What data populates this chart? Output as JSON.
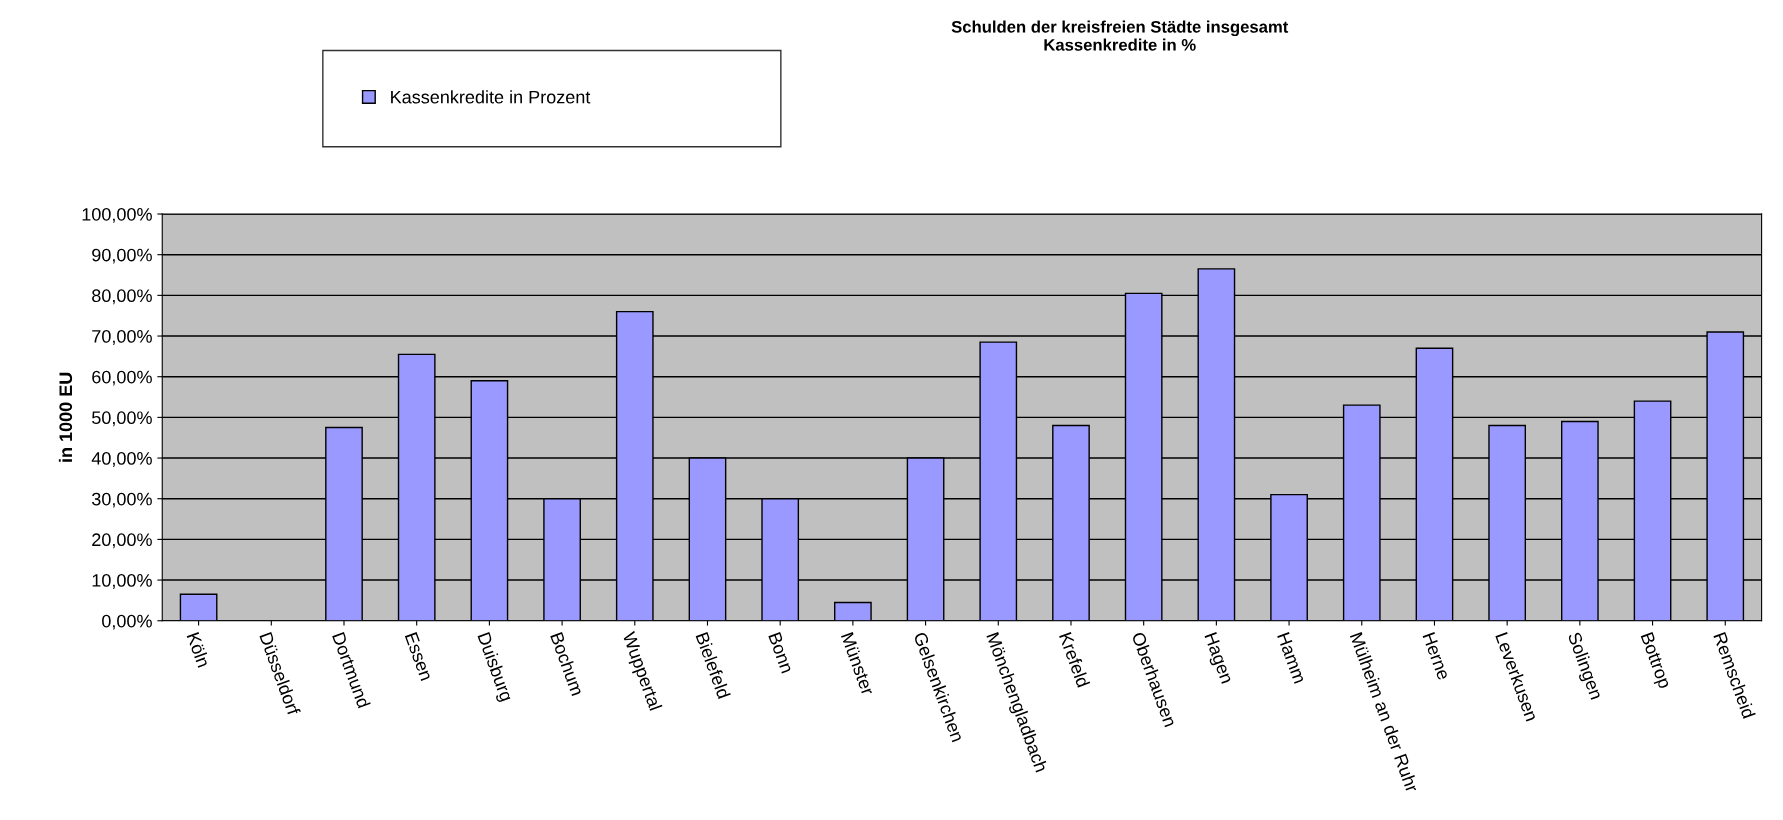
{
  "chart_data": {
    "type": "bar",
    "title": "Schulden der kreisfreien Städte insgesamt\nKassenkredite in %",
    "ylabel": "in 1000 EU",
    "categories": [
      "Köln",
      "Düsseldorf",
      "Dortmund",
      "Essen",
      "Duisburg",
      "Bochum",
      "Wuppertal",
      "Bielefeld",
      "Bonn",
      "Münster",
      "Gelsenkirchen",
      "Mönchengladbach",
      "Krefeld",
      "Oberhausen",
      "Hagen",
      "Hamm",
      "Mülheim an der Ruhr",
      "Herne",
      "Leverkusen",
      "Solingen",
      "Bottrop",
      "Remscheid"
    ],
    "series": [
      {
        "name": "Kassenkredite in Prozent",
        "color": "#9999ff",
        "values": [
          6.5,
          null,
          47.5,
          65.5,
          59,
          30,
          76,
          40,
          30,
          4.5,
          40,
          68.5,
          48,
          80.5,
          86.5,
          31,
          53,
          67,
          48,
          49,
          54,
          71
        ]
      }
    ],
    "ylim": [
      0,
      100
    ],
    "yticks": [
      {
        "value": 0,
        "label": "0,00%"
      },
      {
        "value": 10,
        "label": "10,00%"
      },
      {
        "value": 20,
        "label": "20,00%"
      },
      {
        "value": 30,
        "label": "30,00%"
      },
      {
        "value": 40,
        "label": "40,00%"
      },
      {
        "value": 50,
        "label": "50,00%"
      },
      {
        "value": 60,
        "label": "60,00%"
      },
      {
        "value": 70,
        "label": "70,00%"
      },
      {
        "value": 80,
        "label": "80,00%"
      },
      {
        "value": 90,
        "label": "90,00%"
      },
      {
        "value": 100,
        "label": "100,00%"
      }
    ],
    "grid": "y",
    "legend": "top left"
  }
}
